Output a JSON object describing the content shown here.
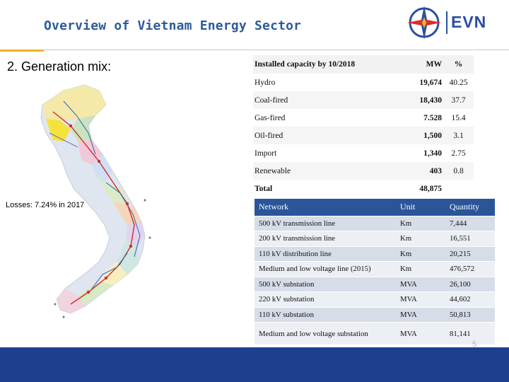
{
  "header": {
    "title": "Overview of Vietnam Energy Sector",
    "logo_text": "EVN"
  },
  "section": {
    "title": "2. Generation mix:",
    "losses": "Losses: 7.24% in 2017"
  },
  "capacity_table": {
    "headers": [
      "Installed capacity by 10/2018",
      "MW",
      "%"
    ],
    "rows": [
      {
        "name": "Hydro",
        "mw": "19,674",
        "pct": "40.25"
      },
      {
        "name": "Coal-fired",
        "mw": "18,430",
        "pct": "37.7"
      },
      {
        "name": "Gas-fired",
        "mw": "7.528",
        "pct": "15.4"
      },
      {
        "name": "Oil-fired",
        "mw": "1,500",
        "pct": "3.1"
      },
      {
        "name": "Import",
        "mw": "1,340",
        "pct": "2.75"
      },
      {
        "name": "Renewable",
        "mw": "403",
        "pct": "0.8"
      }
    ],
    "total": {
      "name": "Total",
      "mw": "48,875",
      "pct": ""
    }
  },
  "network_table": {
    "headers": [
      "Network",
      "Unit",
      "Quantity"
    ],
    "rows": [
      {
        "network": "500 kV transmission line",
        "unit": "Km",
        "quantity": "7,444"
      },
      {
        "network": "200 kV transmission line",
        "unit": "Km",
        "quantity": "16,551"
      },
      {
        "network": "110 kV distribution line",
        "unit": "Km",
        "quantity": "20,215"
      },
      {
        "network": "Medium and low voltage line (2015)",
        "unit": "Km",
        "quantity": "476,572"
      },
      {
        "network": "500 kV substation",
        "unit": "MVA",
        "quantity": "26,100"
      },
      {
        "network": "220 kV substation",
        "unit": "MVA",
        "quantity": "44,602"
      },
      {
        "network": "110 kV substation",
        "unit": "MVA",
        "quantity": "50,813"
      },
      {
        "network": "Medium and low voltage substation",
        "unit": "MVA",
        "quantity": "81,141"
      }
    ]
  },
  "footer": {
    "page_number": "5"
  },
  "colors": {
    "title_blue": "#2e5a9c",
    "accent_yellow": "#f0b323",
    "table_header_blue": "#2a5599",
    "footer_blue": "#1d3f8f"
  }
}
